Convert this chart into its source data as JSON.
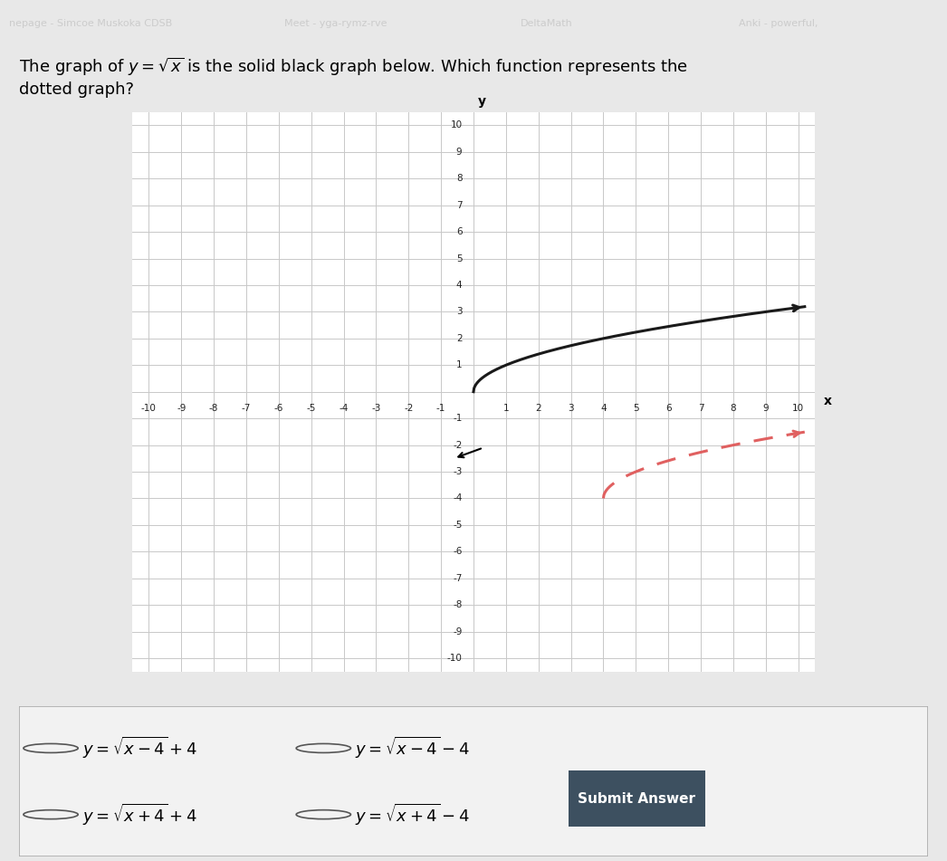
{
  "xlim": [
    -10.5,
    10.5
  ],
  "ylim": [
    -10.5,
    10.5
  ],
  "xlabel": "x",
  "ylabel": "y",
  "grid_color": "#c8c8c8",
  "bg_color": "#e8e8e8",
  "outer_bg": "#d8d8d8",
  "plot_bg": "#ffffff",
  "solid_color": "#1a1a1a",
  "dotted_color": "#e06060",
  "answer_options": [
    "y = \\sqrt{x-4}+4",
    "y = \\sqrt{x-4}-4",
    "y = \\sqrt{x+4}+4",
    "y = \\sqrt{x+4}-4"
  ],
  "figsize": [
    10.46,
    9.51
  ],
  "dpi": 100,
  "answer_bg": "#f2f2f2",
  "submit_bg": "#3d5060",
  "submit_text": "Submit Answer",
  "submit_text_color": "#ffffff",
  "header_bg": "#f0f0f0",
  "nav_bg": "#404040",
  "nav_text_color": "#ffffff"
}
